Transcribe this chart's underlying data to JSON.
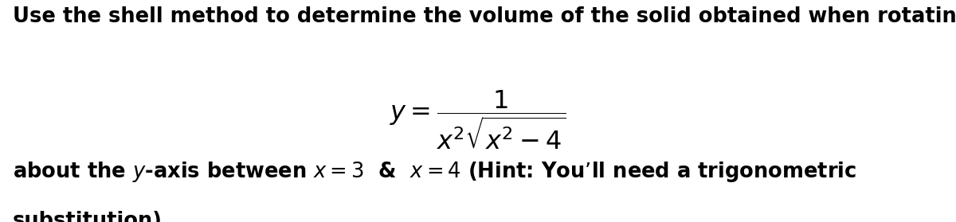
{
  "line1": "Use the shell method to determine the volume of the solid obtained when rotating",
  "line3_plain": "about the ",
  "line3_italic_y": "y",
  "line3_rest": "-axis between ",
  "line3_italic_x1": "x",
  "line3_eq1": " = 3  &  ",
  "line3_italic_x2": "x",
  "line3_eq2": " = 4 (Hint: You’ll need a trigonometric",
  "line4": "substitution).",
  "background_color": "#ffffff",
  "text_color": "#000000",
  "fontsize_main": 18.5,
  "fontsize_formula": 23,
  "fig_width": 12.0,
  "fig_height": 2.79,
  "dpi": 100
}
